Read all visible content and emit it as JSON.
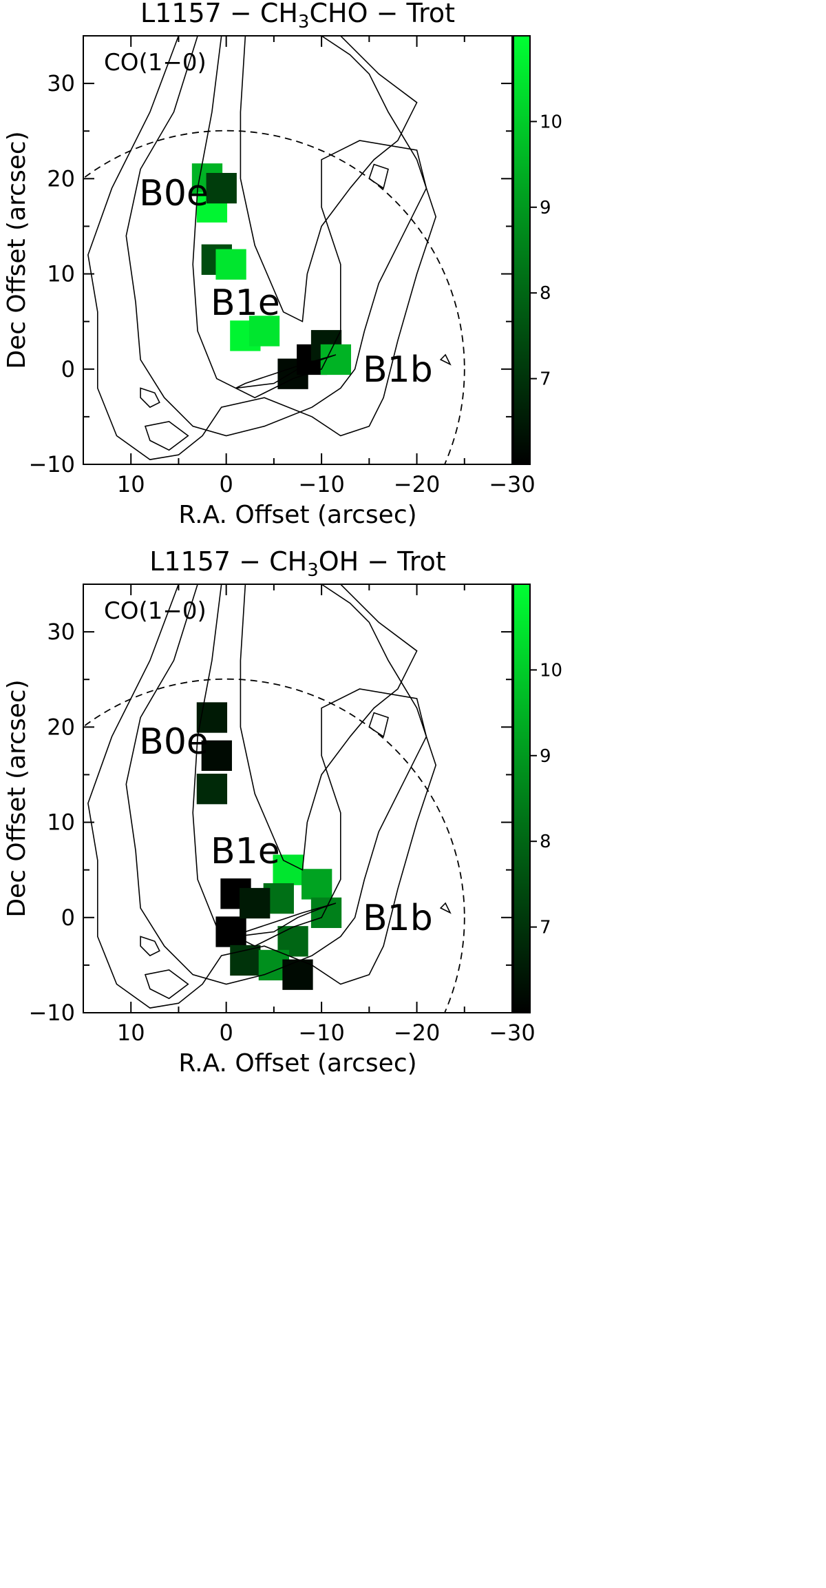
{
  "chart_data": [
    {
      "type": "heatmap",
      "title_parts": [
        "L1157 − CH",
        "3",
        "CHO − Trot"
      ],
      "xlabel": "R.A. Offset (arcsec)",
      "ylabel": "Dec Offset (arcsec)",
      "xlim": [
        15,
        -30
      ],
      "ylim": [
        -10,
        35
      ],
      "xticks": [
        10,
        0,
        -10,
        -20,
        -30
      ],
      "xtick_labels": [
        "10",
        "0",
        "−10",
        "−20",
        "−30"
      ],
      "yticks": [
        -10,
        0,
        10,
        20,
        30
      ],
      "ytick_labels": [
        "−10",
        "0",
        "10",
        "20",
        "30"
      ],
      "colorbar": {
        "range": [
          6,
          11
        ],
        "ticks": [
          7,
          8,
          9,
          10
        ],
        "tick_labels": [
          "7",
          "8",
          "9",
          "10"
        ],
        "colormap": [
          "#000000",
          "#00ff33"
        ]
      },
      "contour_tracer": "CO(1−0)",
      "primary_beam_radius": 25,
      "regions": [
        {
          "label": "B0e",
          "x": 5.5,
          "y": 18.5
        },
        {
          "label": "B1e",
          "x": -2.0,
          "y": 7.0
        },
        {
          "label": "B1b",
          "x": -18.0,
          "y": 0.0
        }
      ],
      "emission": [
        {
          "x": 2.0,
          "y": 20.0,
          "Trot": 9.5
        },
        {
          "x": 1.5,
          "y": 17.0,
          "Trot": 10.8
        },
        {
          "x": 0.5,
          "y": 19.0,
          "Trot": 7.2
        },
        {
          "x": 1.0,
          "y": 11.5,
          "Trot": 7.5
        },
        {
          "x": -0.5,
          "y": 11.0,
          "Trot": 10.5
        },
        {
          "x": -2.0,
          "y": 3.5,
          "Trot": 10.8
        },
        {
          "x": -4.0,
          "y": 4.0,
          "Trot": 10.5
        },
        {
          "x": -7.0,
          "y": -0.5,
          "Trot": 6.2
        },
        {
          "x": -9.0,
          "y": 1.0,
          "Trot": 6.0
        },
        {
          "x": -10.5,
          "y": 2.5,
          "Trot": 6.5
        },
        {
          "x": -11.5,
          "y": 1.0,
          "Trot": 9.5
        }
      ]
    },
    {
      "type": "heatmap",
      "title_parts": [
        "L1157 − CH",
        "3",
        "OH − Trot"
      ],
      "xlabel": "R.A. Offset (arcsec)",
      "ylabel": "Dec Offset (arcsec)",
      "xlim": [
        15,
        -30
      ],
      "ylim": [
        -10,
        35
      ],
      "xticks": [
        10,
        0,
        -10,
        -20,
        -30
      ],
      "xtick_labels": [
        "10",
        "0",
        "−10",
        "−20",
        "−30"
      ],
      "yticks": [
        -10,
        0,
        10,
        20,
        30
      ],
      "ytick_labels": [
        "−10",
        "0",
        "10",
        "20",
        "30"
      ],
      "colorbar": {
        "range": [
          6,
          11
        ],
        "ticks": [
          7,
          8,
          9,
          10
        ],
        "tick_labels": [
          "7",
          "8",
          "9",
          "10"
        ],
        "colormap": [
          "#000000",
          "#00ff33"
        ]
      },
      "contour_tracer": "CO(1−0)",
      "primary_beam_radius": 25,
      "regions": [
        {
          "label": "B0e",
          "x": 5.5,
          "y": 18.5
        },
        {
          "label": "B1e",
          "x": -2.0,
          "y": 7.0
        },
        {
          "label": "B1b",
          "x": -18.0,
          "y": 0.0
        }
      ],
      "emission": [
        {
          "x": 1.5,
          "y": 21.0,
          "Trot": 6.5
        },
        {
          "x": 1.0,
          "y": 17.0,
          "Trot": 6.2
        },
        {
          "x": 1.5,
          "y": 13.5,
          "Trot": 6.8
        },
        {
          "x": -1.0,
          "y": 2.5,
          "Trot": 6.0
        },
        {
          "x": -0.5,
          "y": -1.5,
          "Trot": 6.0
        },
        {
          "x": -2.0,
          "y": -4.5,
          "Trot": 7.0
        },
        {
          "x": -6.5,
          "y": 5.0,
          "Trot": 10.5
        },
        {
          "x": -9.5,
          "y": 3.5,
          "Trot": 9.2
        },
        {
          "x": -10.5,
          "y": 0.5,
          "Trot": 8.5
        },
        {
          "x": -7.0,
          "y": -2.5,
          "Trot": 8.0
        },
        {
          "x": -5.0,
          "y": -5.0,
          "Trot": 8.8
        },
        {
          "x": -5.5,
          "y": 2.0,
          "Trot": 8.2
        },
        {
          "x": -7.5,
          "y": -6.0,
          "Trot": 6.2
        },
        {
          "x": -3.0,
          "y": 1.5,
          "Trot": 6.5
        }
      ]
    }
  ]
}
